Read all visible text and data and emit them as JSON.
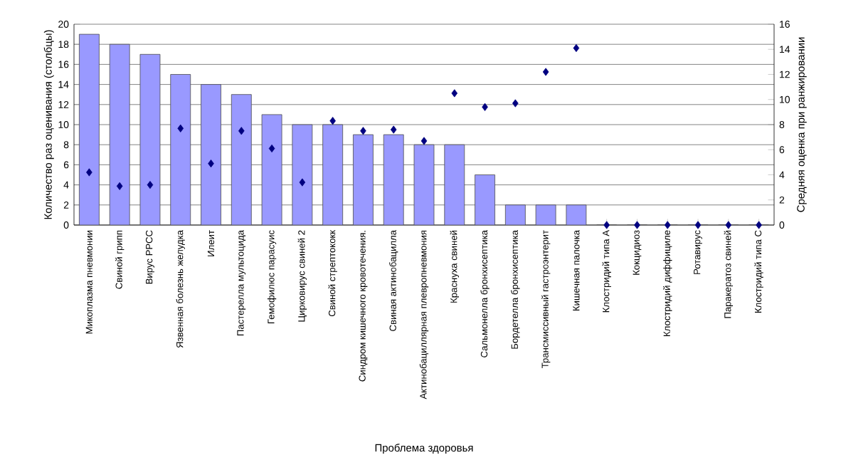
{
  "chart_data": {
    "type": "bar",
    "xlabel": "Проблема здоровья",
    "ylabel": "Количество раз оценивания (столбцы)",
    "y2label": "Средняя оценка при ранжировании",
    "categories": [
      "Микоплазма пневмонии",
      "Свиной грипп",
      "Вирус РРСС",
      "Язвенная болезнь желудка",
      "Илеит",
      "Пастерелла мультоцида",
      "Гемофилюс парасуис",
      "Цирковирус свиней 2",
      "Свиной стрептококк",
      "Синдром кишечного кровотечения.",
      "Свиная актинобацилла",
      "Актинобациллярная плевропневмония",
      "Краснуха свиней",
      "Сальмонелла бронхисептика",
      "Бордетелла бронхисептика",
      "Трансмиссивный гастроэнтерит",
      "Кишечная палочка",
      "Клостридий типа А",
      "Кокцидиоз",
      "Клостридий диффициле",
      "Ротавирус",
      "Паракератоз свиней",
      "Клостридий типа С"
    ],
    "series": [
      {
        "color": "#9999ff",
        "values": [
          19,
          18,
          17,
          15,
          14,
          13,
          11,
          10,
          10,
          9,
          9,
          8,
          8,
          5,
          2,
          2,
          2,
          0,
          0,
          0,
          0,
          0,
          0
        ]
      },
      {
        "type": "scatter",
        "axis": "y2",
        "color": "#000080",
        "marker": "diamond",
        "values": [
          4.2,
          3.1,
          3.2,
          7.7,
          4.9,
          7.5,
          6.1,
          3.4,
          8.3,
          7.5,
          7.6,
          6.7,
          10.5,
          9.4,
          9.7,
          12.2,
          14.1,
          0,
          0,
          0,
          0,
          0,
          0
        ]
      }
    ],
    "ylim": [
      0,
      20
    ],
    "yticks": [
      0,
      2,
      4,
      6,
      8,
      10,
      12,
      14,
      16,
      18,
      20
    ],
    "y2lim": [
      0,
      16
    ],
    "y2ticks": [
      0,
      2,
      4,
      6,
      8,
      10,
      12,
      14,
      16
    ],
    "grid": "y"
  }
}
